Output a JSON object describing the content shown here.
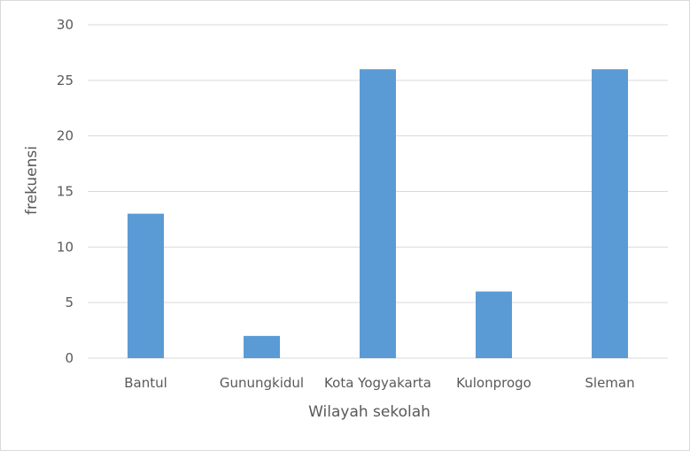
{
  "chart_data": {
    "type": "bar",
    "categories": [
      "Bantul",
      "Gunungkidul",
      "Kota Yogyakarta",
      "Kulonprogo",
      "Sleman"
    ],
    "values": [
      13,
      2,
      26,
      6,
      26
    ],
    "xlabel": "Wilayah sekolah",
    "ylabel": "frekuensi",
    "ylim": [
      0,
      30
    ],
    "yticks": [
      0,
      5,
      10,
      15,
      20,
      25,
      30
    ],
    "grid": true,
    "bar_color": "#5b9bd5",
    "gridline_color": "#d9d9d9",
    "legend": "none"
  }
}
